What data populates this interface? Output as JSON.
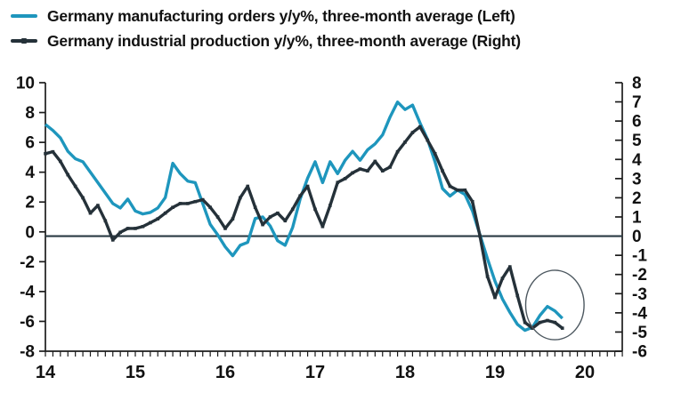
{
  "legend": {
    "items": [
      {
        "label": "Germany manufacturing orders y/y%, three-month average (Left)",
        "color": "#1e96bd",
        "marker": false
      },
      {
        "label": "Germany industrial production y/y%, three-month average (Right)",
        "color": "#253139",
        "marker": true
      }
    ]
  },
  "chart_data": {
    "type": "line",
    "title": "",
    "x_unit": "monthly",
    "x_start": "2014-01",
    "x_tick_labels": [
      "14",
      "15",
      "16",
      "17",
      "18",
      "19",
      "20"
    ],
    "grid": false,
    "zero_line": true,
    "zero_line_axis": "right",
    "zero_line_color": "#2a3a43",
    "frame_color": "#1c1c1c",
    "left_axis": {
      "max": 10,
      "min": -8,
      "tick_step": 2,
      "ticks": [
        10,
        8,
        6,
        4,
        2,
        0,
        -2,
        -4,
        -6,
        -8
      ]
    },
    "right_axis": {
      "max": 8,
      "min": -6,
      "tick_step": 1,
      "ticks": [
        8,
        7,
        6,
        5,
        4,
        3,
        2,
        1,
        0,
        -1,
        -2,
        -3,
        -4,
        -5,
        -6
      ]
    },
    "series": [
      {
        "name": "Germany manufacturing orders y/y%, three-month average",
        "axis": "left",
        "color": "#1e96bd",
        "marker": false,
        "values": [
          7.2,
          6.8,
          6.3,
          5.4,
          4.9,
          4.7,
          4.0,
          3.3,
          2.6,
          1.9,
          1.6,
          2.2,
          1.4,
          1.2,
          1.3,
          1.6,
          2.3,
          4.6,
          3.9,
          3.4,
          3.3,
          1.9,
          0.5,
          -0.2,
          -1.0,
          -1.6,
          -0.9,
          -0.7,
          0.9,
          1.0,
          0.4,
          -0.6,
          -0.9,
          0.3,
          2.2,
          3.6,
          4.7,
          3.3,
          4.7,
          3.9,
          4.8,
          5.4,
          4.8,
          5.5,
          5.9,
          6.5,
          7.7,
          8.7,
          8.2,
          8.5,
          7.3,
          6.2,
          4.7,
          2.9,
          2.4,
          2.8,
          2.5,
          1.4,
          -0.2,
          -1.8,
          -3.3,
          -4.5,
          -5.4,
          -6.2,
          -6.6,
          -6.4,
          -5.6,
          -5.0,
          -5.3,
          -5.8
        ]
      },
      {
        "name": "Germany industrial production y/y%, three-month average",
        "axis": "right",
        "color": "#253139",
        "marker": true,
        "values": [
          4.3,
          4.4,
          3.9,
          3.2,
          2.6,
          2.0,
          1.2,
          1.6,
          0.8,
          -0.2,
          0.2,
          0.4,
          0.4,
          0.5,
          0.7,
          0.9,
          1.2,
          1.5,
          1.7,
          1.7,
          1.8,
          1.9,
          1.5,
          1.0,
          0.4,
          0.9,
          2.0,
          2.6,
          1.5,
          0.6,
          1.0,
          1.2,
          0.8,
          1.4,
          2.1,
          2.6,
          1.4,
          0.5,
          1.6,
          2.8,
          3.0,
          3.3,
          3.5,
          3.4,
          3.9,
          3.4,
          3.6,
          4.4,
          4.9,
          5.4,
          5.7,
          5.0,
          4.3,
          3.4,
          2.6,
          2.4,
          2.4,
          1.8,
          0.0,
          -2.1,
          -3.2,
          -2.2,
          -1.6,
          -3.1,
          -4.5,
          -4.8,
          -4.5,
          -4.4,
          -4.5,
          -4.8
        ]
      }
    ],
    "annotation": {
      "shape": "ellipse",
      "meaning": "highlight of late-2019 trough in both series",
      "cx_month_index": 68,
      "cy_left_value": -4.9,
      "rx_months": 3.9,
      "ry_left_units": 2.33,
      "color": "#4d5860"
    }
  }
}
